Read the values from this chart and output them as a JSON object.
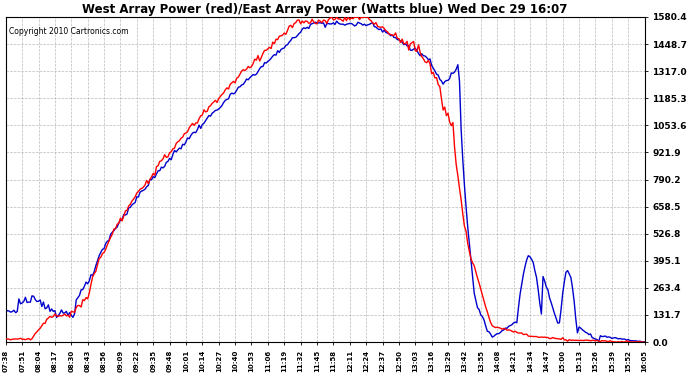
{
  "title": "West Array Power (red)/East Array Power (Watts blue) Wed Dec 29 16:07",
  "copyright": "Copyright 2010 Cartronics.com",
  "background_color": "#ffffff",
  "plot_bg_color": "#ffffff",
  "grid_color": "#aaaaaa",
  "yticks": [
    0.0,
    131.7,
    263.4,
    395.1,
    526.8,
    658.5,
    790.2,
    921.9,
    1053.6,
    1185.3,
    1317.0,
    1448.7,
    1580.4
  ],
  "ymax": 1580.4,
  "ymin": 0.0,
  "xtick_labels": [
    "07:38",
    "07:51",
    "08:04",
    "08:17",
    "08:30",
    "08:43",
    "08:56",
    "09:09",
    "09:22",
    "09:35",
    "09:48",
    "10:01",
    "10:14",
    "10:27",
    "10:40",
    "10:53",
    "11:06",
    "11:19",
    "11:32",
    "11:45",
    "11:58",
    "12:11",
    "12:24",
    "12:37",
    "12:50",
    "13:03",
    "13:16",
    "13:29",
    "13:42",
    "13:55",
    "14:08",
    "14:21",
    "14:34",
    "14:47",
    "15:00",
    "15:13",
    "15:26",
    "15:39",
    "15:52",
    "16:05"
  ],
  "red_color": "#ff0000",
  "blue_color": "#0000cc",
  "line_width": 1.0
}
